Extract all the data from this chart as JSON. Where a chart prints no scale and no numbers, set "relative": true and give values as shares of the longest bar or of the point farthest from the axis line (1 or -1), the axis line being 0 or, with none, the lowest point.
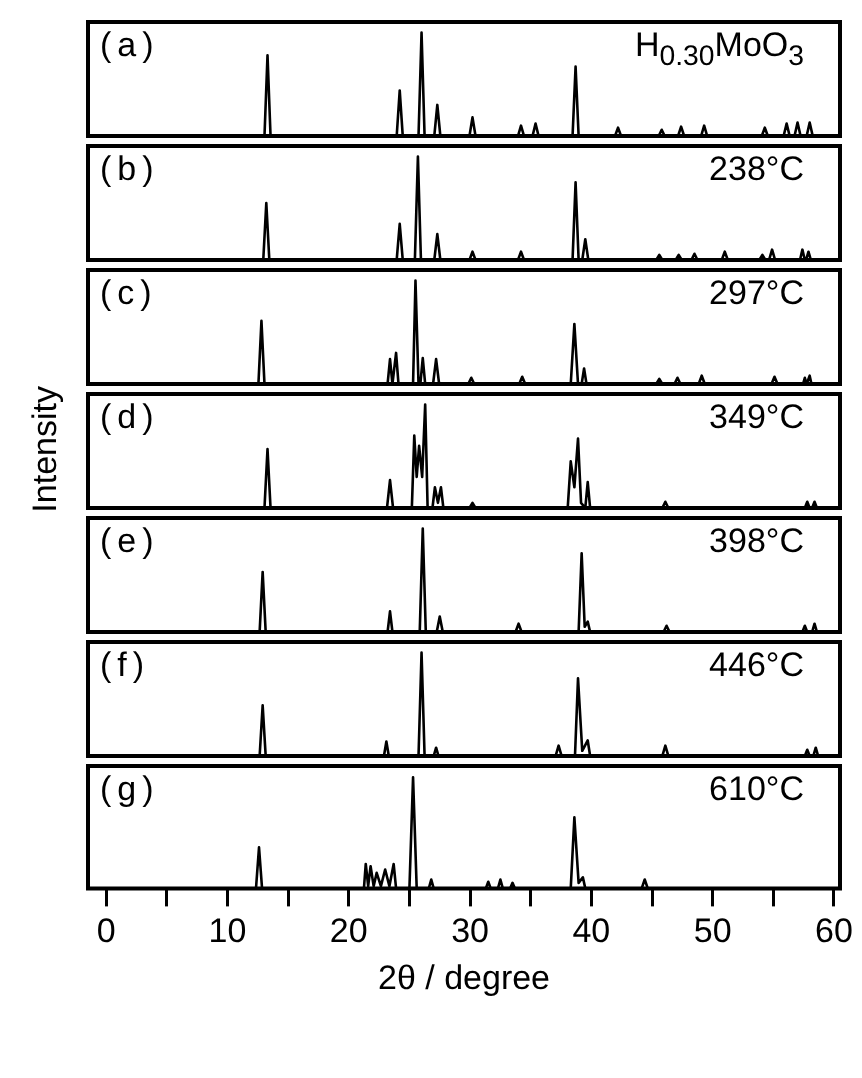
{
  "chart_data": [
    {
      "type": "line",
      "relative": true,
      "color": "#000000",
      "xlim": [
        -1.5,
        60.5
      ],
      "tick_labels": false,
      "annotations": [
        "(a)",
        "H$_{0.30}$MoO$_{3}$"
      ],
      "x": [
        -1.5,
        13.05,
        13.3,
        13.55,
        23.95,
        24.2,
        24.45,
        25.75,
        26.0,
        26.25,
        27.05,
        27.3,
        27.55,
        29.95,
        30.2,
        30.45,
        33.95,
        34.2,
        34.45,
        35.15,
        35.4,
        35.65,
        38.45,
        38.7,
        38.95,
        41.95,
        42.2,
        42.45,
        45.55,
        45.8,
        46.05,
        47.15,
        47.4,
        47.65,
        49.05,
        49.3,
        49.55,
        54.05,
        54.3,
        54.55,
        55.85,
        56.1,
        56.35,
        56.75,
        57.0,
        57.25,
        57.75,
        58.0,
        58.25,
        60.5
      ],
      "values": [
        0,
        0,
        0.78,
        0,
        0,
        0.44,
        0,
        0,
        1,
        0,
        0,
        0.3,
        0,
        0,
        0.18,
        0,
        0,
        0.1,
        0,
        0,
        0.12,
        0,
        0,
        0.67,
        0,
        0,
        0.08,
        0,
        0,
        0.06,
        0,
        0,
        0.09,
        0,
        0,
        0.1,
        0,
        0,
        0.08,
        0,
        0,
        0.12,
        0,
        0,
        0.13,
        0,
        0,
        0.13,
        0,
        0
      ]
    },
    {
      "type": "line",
      "relative": true,
      "color": "#000000",
      "xlim": [
        -1.5,
        60.5
      ],
      "tick_labels": false,
      "annotations": [
        "(b)",
        "238°C"
      ],
      "x": [
        -1.5,
        12.95,
        13.2,
        13.45,
        23.95,
        24.2,
        24.45,
        25.45,
        25.7,
        25.95,
        27.05,
        27.3,
        27.55,
        29.95,
        30.2,
        30.45,
        33.95,
        34.2,
        34.45,
        38.45,
        38.7,
        38.95,
        39.25,
        39.5,
        39.75,
        45.35,
        45.6,
        45.85,
        46.95,
        47.2,
        47.45,
        48.25,
        48.5,
        48.75,
        50.75,
        51.0,
        51.25,
        53.85,
        54.1,
        54.35,
        54.65,
        54.9,
        55.15,
        57.2,
        57.4,
        57.6,
        57.7,
        57.9,
        58.1,
        60.5
      ],
      "values": [
        0,
        0,
        0.55,
        0,
        0,
        0.35,
        0,
        0,
        1,
        0,
        0,
        0.25,
        0,
        0,
        0.08,
        0,
        0,
        0.08,
        0,
        0,
        0.75,
        0,
        0,
        0.2,
        0,
        0,
        0.05,
        0,
        0,
        0.05,
        0,
        0,
        0.06,
        0,
        0,
        0.08,
        0,
        0,
        0.05,
        0,
        0,
        0.1,
        0,
        0,
        0.1,
        0,
        0,
        0.08,
        0,
        0
      ]
    },
    {
      "type": "line",
      "relative": true,
      "color": "#000000",
      "xlim": [
        -1.5,
        60.5
      ],
      "tick_labels": false,
      "annotations": [
        "(c)",
        "297°C"
      ],
      "x": [
        -1.5,
        12.55,
        12.8,
        13.05,
        23.2,
        23.4,
        23.6,
        23.7,
        23.9,
        24.1,
        25.3,
        25.5,
        25.75,
        25.9,
        26.1,
        26.3,
        26.95,
        27.2,
        27.45,
        29.85,
        30.1,
        30.35,
        34.05,
        34.3,
        34.55,
        38.3,
        38.6,
        38.9,
        39.2,
        39.4,
        39.6,
        45.35,
        45.6,
        45.85,
        46.85,
        47.1,
        47.35,
        48.85,
        49.1,
        49.35,
        54.85,
        55.1,
        55.35,
        57.45,
        57.6,
        57.75,
        57.85,
        58.0,
        58.15,
        60.5
      ],
      "values": [
        0,
        0,
        0.61,
        0,
        0,
        0.24,
        0,
        0,
        0.3,
        0,
        0,
        1,
        0,
        0,
        0.25,
        0,
        0,
        0.24,
        0,
        0,
        0.06,
        0,
        0,
        0.07,
        0,
        0,
        0.58,
        0,
        0,
        0.15,
        0,
        0,
        0.05,
        0,
        0,
        0.06,
        0,
        0,
        0.08,
        0,
        0,
        0.07,
        0,
        0,
        0.06,
        0,
        0,
        0.08,
        0,
        0
      ]
    },
    {
      "type": "line",
      "relative": true,
      "color": "#000000",
      "xlim": [
        -1.5,
        60.5
      ],
      "tick_labels": false,
      "ylabel": "Intensity",
      "annotations": [
        "(d)",
        "349°C"
      ],
      "x": [
        -1.5,
        13.05,
        13.3,
        13.55,
        23.15,
        23.4,
        23.65,
        25.2,
        25.4,
        25.6,
        25.8,
        26.05,
        26.3,
        26.5,
        26.9,
        27.1,
        27.35,
        27.6,
        27.8,
        29.95,
        30.2,
        30.45,
        38.05,
        38.3,
        38.6,
        38.9,
        39.15,
        39.5,
        39.7,
        39.9,
        45.85,
        46.1,
        46.35,
        57.6,
        57.8,
        58.0,
        58.2,
        58.4,
        58.6,
        60.5
      ],
      "values": [
        0,
        0,
        0.57,
        0,
        0,
        0.27,
        0,
        0,
        0.7,
        0.3,
        0.6,
        0.3,
        1,
        0,
        0,
        0.2,
        0.05,
        0.2,
        0,
        0,
        0.05,
        0,
        0,
        0.45,
        0.2,
        0.67,
        0.05,
        0,
        0.25,
        0,
        0,
        0.06,
        0,
        0,
        0.06,
        0,
        0,
        0.06,
        0,
        0
      ]
    },
    {
      "type": "line",
      "relative": true,
      "color": "#000000",
      "xlim": [
        -1.5,
        60.5
      ],
      "tick_labels": false,
      "annotations": [
        "(e)",
        "398°C"
      ],
      "x": [
        -1.5,
        12.65,
        12.9,
        13.15,
        23.2,
        23.4,
        23.6,
        25.85,
        26.1,
        26.35,
        27.25,
        27.5,
        27.75,
        33.75,
        34.0,
        34.25,
        38.95,
        39.2,
        39.45,
        39.7,
        39.9,
        45.95,
        46.2,
        46.45,
        57.4,
        57.6,
        57.8,
        58.2,
        58.4,
        58.6,
        60.5
      ],
      "values": [
        0,
        0,
        0.58,
        0,
        0,
        0.2,
        0,
        0,
        1,
        0,
        0,
        0.15,
        0,
        0,
        0.08,
        0,
        0,
        0.76,
        0.05,
        0.1,
        0,
        0,
        0.06,
        0,
        0,
        0.06,
        0,
        0,
        0.08,
        0,
        0
      ]
    },
    {
      "type": "line",
      "relative": true,
      "color": "#000000",
      "xlim": [
        -1.5,
        60.5
      ],
      "tick_labels": false,
      "annotations": [
        "(f)",
        "446°C"
      ],
      "x": [
        -1.5,
        12.65,
        12.9,
        13.15,
        22.9,
        23.1,
        23.3,
        25.75,
        26.0,
        26.25,
        27.0,
        27.2,
        27.4,
        37.05,
        37.3,
        37.55,
        38.65,
        38.9,
        39.25,
        39.7,
        39.9,
        45.85,
        46.1,
        46.35,
        57.6,
        57.8,
        58.0,
        58.3,
        58.5,
        58.7,
        60.5
      ],
      "values": [
        0,
        0,
        0.49,
        0,
        0,
        0.14,
        0,
        0,
        1,
        0,
        0,
        0.08,
        0,
        0,
        0.1,
        0,
        0,
        0.75,
        0.05,
        0.15,
        0,
        0,
        0.1,
        0,
        0,
        0.06,
        0,
        0,
        0.08,
        0,
        0
      ]
    },
    {
      "type": "line",
      "relative": true,
      "color": "#000000",
      "xlim": [
        -1.5,
        60.5
      ],
      "tick_labels": "x",
      "xlabel": "2θ / degree",
      "annotations": [
        "(g)",
        "610°C"
      ],
      "xticks": [
        0,
        {
          "value": 5,
          "label": null
        },
        10,
        {
          "value": 15,
          "label": null
        },
        20,
        {
          "value": 25,
          "label": null
        },
        30,
        {
          "value": 35,
          "label": null
        },
        40,
        {
          "value": 45,
          "label": null
        },
        50,
        {
          "value": 55,
          "label": null
        },
        60
      ],
      "x": [
        -1.5,
        12.35,
        12.6,
        12.85,
        21.25,
        21.4,
        21.6,
        21.8,
        22.05,
        22.3,
        22.65,
        23.0,
        23.35,
        23.7,
        23.9,
        25.0,
        25.3,
        25.6,
        26.6,
        26.8,
        27.0,
        31.3,
        31.5,
        31.7,
        32.3,
        32.5,
        32.7,
        33.3,
        33.5,
        33.7,
        38.3,
        38.6,
        38.95,
        39.3,
        39.5,
        44.15,
        44.4,
        44.65,
        60.5
      ],
      "values": [
        0,
        0,
        0.37,
        0,
        0,
        0.22,
        0.02,
        0.2,
        0.02,
        0.14,
        0.02,
        0.17,
        0.02,
        0.22,
        0,
        0,
        1,
        0,
        0,
        0.08,
        0,
        0,
        0.06,
        0,
        0,
        0.08,
        0,
        0,
        0.05,
        0,
        0,
        0.64,
        0.05,
        0.1,
        0,
        0,
        0.08,
        0,
        0
      ]
    }
  ]
}
